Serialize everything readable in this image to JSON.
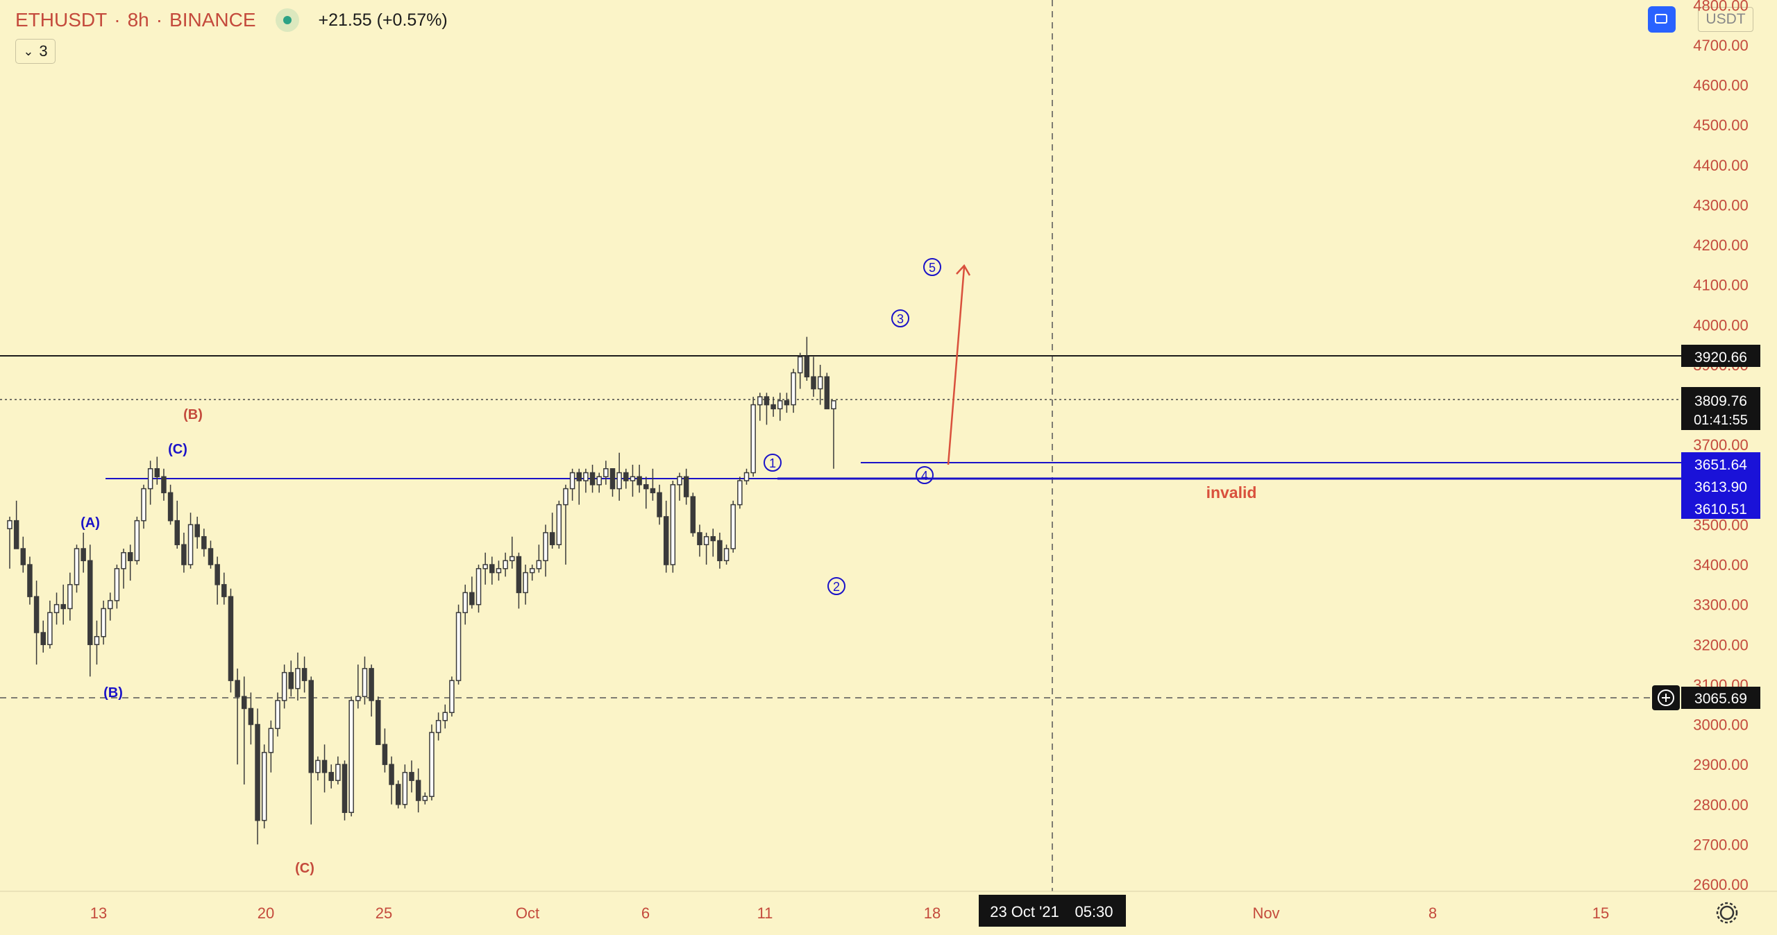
{
  "header": {
    "symbol": "ETHUSDT",
    "interval": "8h",
    "exchange": "BINANCE",
    "change": "+21.55 (+0.57%)",
    "indicators_count": "3",
    "currency": "USDT",
    "sep": "·"
  },
  "colors": {
    "background": "#fbf4c8",
    "candle_body": "#3a3a3a",
    "up_fill": "#ffffff",
    "wave_blue": "#1a12c8",
    "wave_red": "#c44a3c",
    "axis_text": "#c44a3c"
  },
  "chart_data": {
    "type": "candlestick",
    "ylim": [
      2560,
      4800
    ],
    "y_ticks": [
      "4800.00",
      "4700.00",
      "4600.00",
      "4500.00",
      "4400.00",
      "4300.00",
      "4200.00",
      "4100.00",
      "4000.00",
      "3900.00",
      "3800.00",
      "3700.00",
      "3600.00",
      "3500.00",
      "3400.00",
      "3300.00",
      "3200.00",
      "3100.00",
      "3000.00",
      "2900.00",
      "2800.00",
      "2700.00",
      "2600.00"
    ],
    "x_ticks": [
      "13",
      "20",
      "25",
      "Oct",
      "6",
      "11",
      "18",
      "Nov",
      "8",
      "15"
    ],
    "candles_ohlc": [
      [
        3490,
        3520,
        3390,
        3510
      ],
      [
        3510,
        3560,
        3470,
        3440
      ],
      [
        3440,
        3470,
        3380,
        3400
      ],
      [
        3400,
        3420,
        3300,
        3320
      ],
      [
        3320,
        3360,
        3150,
        3230
      ],
      [
        3230,
        3260,
        3180,
        3200
      ],
      [
        3200,
        3310,
        3190,
        3280
      ],
      [
        3280,
        3330,
        3250,
        3300
      ],
      [
        3300,
        3350,
        3250,
        3290
      ],
      [
        3290,
        3380,
        3260,
        3350
      ],
      [
        3350,
        3450,
        3330,
        3440
      ],
      [
        3440,
        3480,
        3380,
        3410
      ],
      [
        3410,
        3450,
        3120,
        3200
      ],
      [
        3200,
        3260,
        3150,
        3220
      ],
      [
        3220,
        3310,
        3200,
        3290
      ],
      [
        3290,
        3330,
        3260,
        3310
      ],
      [
        3310,
        3400,
        3290,
        3390
      ],
      [
        3390,
        3440,
        3340,
        3430
      ],
      [
        3430,
        3450,
        3360,
        3410
      ],
      [
        3410,
        3520,
        3400,
        3510
      ],
      [
        3510,
        3600,
        3490,
        3590
      ],
      [
        3590,
        3660,
        3550,
        3640
      ],
      [
        3640,
        3670,
        3600,
        3620
      ],
      [
        3620,
        3640,
        3560,
        3580
      ],
      [
        3580,
        3600,
        3500,
        3510
      ],
      [
        3510,
        3560,
        3440,
        3450
      ],
      [
        3450,
        3480,
        3380,
        3400
      ],
      [
        3400,
        3530,
        3390,
        3500
      ],
      [
        3500,
        3520,
        3440,
        3470
      ],
      [
        3470,
        3490,
        3420,
        3440
      ],
      [
        3440,
        3460,
        3390,
        3400
      ],
      [
        3400,
        3420,
        3300,
        3350
      ],
      [
        3350,
        3380,
        3300,
        3320
      ],
      [
        3320,
        3340,
        3080,
        3110
      ],
      [
        3110,
        3140,
        2900,
        3070
      ],
      [
        3070,
        3120,
        2850,
        3040
      ],
      [
        3040,
        3080,
        2950,
        3000
      ],
      [
        3000,
        3040,
        2700,
        2760
      ],
      [
        2760,
        2950,
        2740,
        2930
      ],
      [
        2930,
        3010,
        2880,
        2990
      ],
      [
        2990,
        3080,
        2970,
        3060
      ],
      [
        3060,
        3150,
        3040,
        3130
      ],
      [
        3130,
        3160,
        3070,
        3090
      ],
      [
        3090,
        3180,
        3060,
        3140
      ],
      [
        3140,
        3170,
        3080,
        3110
      ],
      [
        3110,
        3120,
        2750,
        2880
      ],
      [
        2880,
        2920,
        2860,
        2910
      ],
      [
        2910,
        2950,
        2830,
        2880
      ],
      [
        2880,
        2900,
        2840,
        2860
      ],
      [
        2860,
        2920,
        2850,
        2900
      ],
      [
        2900,
        2910,
        2760,
        2780
      ],
      [
        2780,
        3070,
        2770,
        3060
      ],
      [
        3060,
        3150,
        3040,
        3070
      ],
      [
        3070,
        3170,
        3050,
        3140
      ],
      [
        3140,
        3150,
        3020,
        3060
      ],
      [
        3060,
        3070,
        2960,
        2950
      ],
      [
        2950,
        2990,
        2880,
        2900
      ],
      [
        2900,
        2920,
        2800,
        2850
      ],
      [
        2850,
        2860,
        2790,
        2800
      ],
      [
        2800,
        2900,
        2790,
        2880
      ],
      [
        2880,
        2910,
        2830,
        2860
      ],
      [
        2860,
        2890,
        2780,
        2810
      ],
      [
        2810,
        2830,
        2800,
        2820
      ],
      [
        2820,
        3000,
        2810,
        2980
      ],
      [
        2980,
        3030,
        2960,
        3010
      ],
      [
        3010,
        3050,
        2990,
        3030
      ],
      [
        3030,
        3120,
        3020,
        3110
      ],
      [
        3110,
        3300,
        3100,
        3280
      ],
      [
        3280,
        3350,
        3250,
        3330
      ],
      [
        3330,
        3370,
        3290,
        3300
      ],
      [
        3300,
        3400,
        3280,
        3390
      ],
      [
        3390,
        3430,
        3350,
        3400
      ],
      [
        3400,
        3420,
        3350,
        3380
      ],
      [
        3380,
        3410,
        3360,
        3390
      ],
      [
        3390,
        3430,
        3370,
        3410
      ],
      [
        3410,
        3470,
        3390,
        3420
      ],
      [
        3420,
        3430,
        3290,
        3330
      ],
      [
        3330,
        3400,
        3300,
        3380
      ],
      [
        3380,
        3400,
        3360,
        3390
      ],
      [
        3390,
        3450,
        3380,
        3410
      ],
      [
        3410,
        3500,
        3370,
        3480
      ],
      [
        3480,
        3530,
        3440,
        3450
      ],
      [
        3450,
        3560,
        3440,
        3550
      ],
      [
        3550,
        3600,
        3400,
        3590
      ],
      [
        3590,
        3640,
        3560,
        3630
      ],
      [
        3630,
        3640,
        3550,
        3610
      ],
      [
        3610,
        3640,
        3580,
        3630
      ],
      [
        3630,
        3650,
        3580,
        3600
      ],
      [
        3600,
        3630,
        3580,
        3620
      ],
      [
        3620,
        3660,
        3600,
        3640
      ],
      [
        3640,
        3640,
        3570,
        3590
      ],
      [
        3590,
        3680,
        3560,
        3630
      ],
      [
        3630,
        3640,
        3590,
        3610
      ],
      [
        3610,
        3650,
        3570,
        3620
      ],
      [
        3620,
        3650,
        3580,
        3600
      ],
      [
        3600,
        3620,
        3540,
        3590
      ],
      [
        3590,
        3640,
        3560,
        3580
      ],
      [
        3580,
        3600,
        3500,
        3520
      ],
      [
        3520,
        3560,
        3380,
        3400
      ],
      [
        3400,
        3610,
        3380,
        3600
      ],
      [
        3600,
        3630,
        3560,
        3620
      ],
      [
        3620,
        3640,
        3550,
        3570
      ],
      [
        3570,
        3580,
        3470,
        3480
      ],
      [
        3480,
        3500,
        3420,
        3450
      ],
      [
        3450,
        3480,
        3400,
        3470
      ],
      [
        3470,
        3490,
        3420,
        3460
      ],
      [
        3460,
        3480,
        3390,
        3410
      ],
      [
        3410,
        3450,
        3400,
        3440
      ],
      [
        3440,
        3560,
        3430,
        3550
      ],
      [
        3550,
        3620,
        3540,
        3610
      ],
      [
        3610,
        3640,
        3600,
        3630
      ],
      [
        3630,
        3820,
        3620,
        3800
      ],
      [
        3800,
        3830,
        3760,
        3820
      ],
      [
        3820,
        3830,
        3750,
        3800
      ],
      [
        3800,
        3820,
        3770,
        3790
      ],
      [
        3790,
        3830,
        3760,
        3810
      ],
      [
        3810,
        3830,
        3780,
        3800
      ],
      [
        3800,
        3890,
        3780,
        3880
      ],
      [
        3880,
        3930,
        3840,
        3920
      ],
      [
        3920,
        3970,
        3860,
        3870
      ],
      [
        3870,
        3920,
        3820,
        3840
      ],
      [
        3840,
        3900,
        3800,
        3870
      ],
      [
        3870,
        3880,
        3790,
        3790
      ],
      [
        3790,
        3800,
        3640,
        3810
      ]
    ],
    "horizontal_levels": [
      3920.66,
      3809.76,
      3651.64,
      3613.9,
      3610.51,
      3065.69
    ],
    "price_labels": {
      "resistance": "3920.66",
      "last": "3809.76",
      "countdown": "01:41:55",
      "level_a": "3651.64",
      "level_b": "3613.90",
      "level_c": "3610.51",
      "crosshair": "3065.69"
    },
    "crosshair_date": "23 Oct '21",
    "crosshair_time": "05:30",
    "annotations": {
      "wave_blue_A": "(A)",
      "wave_blue_B": "(B)",
      "wave_blue_C": "(C)",
      "wave_red_B": "(B)",
      "wave_red_C": "(C)",
      "wave_1": "1",
      "wave_2": "2",
      "wave_3": "3",
      "wave_4": "4",
      "wave_5": "5",
      "invalid": "invalid"
    }
  }
}
